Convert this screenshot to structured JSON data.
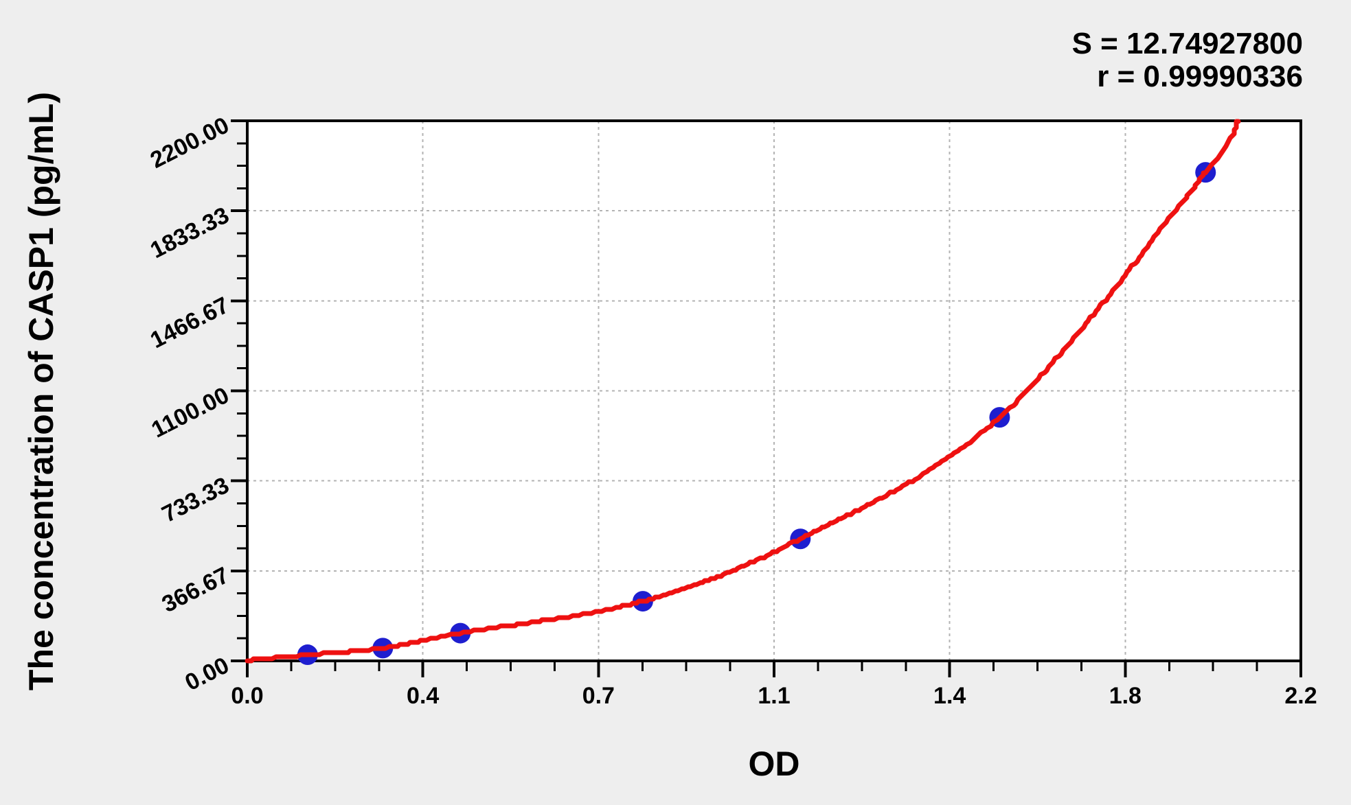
{
  "chart_data": {
    "type": "scatter",
    "title": "",
    "xlabel": "OD",
    "ylabel": "The concentration of CASP1 (pg/mL)",
    "annotations": {
      "s_label": "S = 12.74927800",
      "r_label": "r = 0.99990336"
    },
    "xlim": [
      0,
      2.2
    ],
    "ylim": [
      0,
      2200
    ],
    "x_major_values": [
      0,
      0.36667,
      0.73333,
      1.1,
      1.46667,
      1.83333,
      2.2
    ],
    "x_tick_labels": [
      "0.0",
      "0.4",
      "0.7",
      "1.1",
      "1.4",
      "1.8",
      "2.2"
    ],
    "y_major_values": [
      0,
      366.67,
      733.33,
      1100,
      1466.67,
      1833.33,
      2200
    ],
    "y_tick_labels": [
      "0.00",
      "366.67",
      "733.33",
      "1100.00",
      "1466.67",
      "1833.33",
      "2200.00"
    ],
    "minor_ticks_per_major": 4,
    "grid": {
      "show": true,
      "style": "dashed",
      "on_major_ticks_only": true
    },
    "legend": "none",
    "series": [
      {
        "name": "standard points",
        "kind": "scatter",
        "points": [
          [
            0.126,
            25
          ],
          [
            0.283,
            52
          ],
          [
            0.445,
            113
          ],
          [
            0.826,
            243
          ],
          [
            1.155,
            497
          ],
          [
            1.571,
            992
          ],
          [
            2.001,
            1990
          ]
        ]
      },
      {
        "name": "fitted curve",
        "kind": "line",
        "points": [
          [
            0,
            2
          ],
          [
            0.126,
            25
          ],
          [
            0.283,
            52
          ],
          [
            0.445,
            113
          ],
          [
            0.826,
            243
          ],
          [
            1.155,
            497
          ],
          [
            1.571,
            992
          ],
          [
            2.001,
            1990
          ],
          [
            2.068,
            2200
          ]
        ]
      }
    ],
    "colors": {
      "background": "#eeeeee",
      "plot_background": "#ffffff",
      "curve": "#ee1111",
      "points": "#1e1ecf",
      "grid": "#b3b3b3",
      "axis": "#000000"
    }
  }
}
